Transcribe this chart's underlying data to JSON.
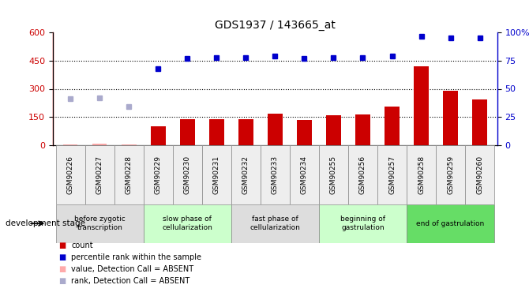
{
  "title": "GDS1937 / 143665_at",
  "samples": [
    "GSM90226",
    "GSM90227",
    "GSM90228",
    "GSM90229",
    "GSM90230",
    "GSM90231",
    "GSM90232",
    "GSM90233",
    "GSM90234",
    "GSM90255",
    "GSM90256",
    "GSM90257",
    "GSM90258",
    "GSM90259",
    "GSM90260"
  ],
  "bar_values": [
    5,
    8,
    3,
    100,
    137,
    140,
    140,
    168,
    135,
    158,
    162,
    205,
    420,
    290,
    245
  ],
  "bar_absent": [
    true,
    true,
    true,
    false,
    false,
    false,
    false,
    false,
    false,
    false,
    false,
    false,
    false,
    false,
    false
  ],
  "rank_values": [
    41,
    42,
    34,
    68,
    77,
    78,
    78,
    79,
    77,
    78,
    78,
    79,
    97,
    95,
    95
  ],
  "rank_absent": [
    true,
    true,
    true,
    false,
    false,
    false,
    false,
    false,
    false,
    false,
    false,
    false,
    false,
    false,
    false
  ],
  "ylim_left": [
    0,
    600
  ],
  "ylim_right": [
    0,
    100
  ],
  "yticks_left": [
    0,
    150,
    300,
    450,
    600
  ],
  "yticks_right": [
    0,
    25,
    50,
    75,
    100
  ],
  "bar_color_present": "#cc0000",
  "bar_color_absent": "#ffaaaa",
  "rank_color_present": "#0000cc",
  "rank_color_absent": "#aaaacc",
  "stages": [
    {
      "label": "before zygotic\ntranscription",
      "start": 0,
      "end": 3,
      "color": "#dddddd"
    },
    {
      "label": "slow phase of\ncellularization",
      "start": 3,
      "end": 6,
      "color": "#ccffcc"
    },
    {
      "label": "fast phase of\ncellularization",
      "start": 6,
      "end": 9,
      "color": "#dddddd"
    },
    {
      "label": "beginning of\ngastrulation",
      "start": 9,
      "end": 12,
      "color": "#ccffcc"
    },
    {
      "label": "end of gastrulation",
      "start": 12,
      "end": 15,
      "color": "#66dd66"
    }
  ],
  "stage_label": "development stage",
  "legend_items": [
    {
      "label": "count",
      "color": "#cc0000"
    },
    {
      "label": "percentile rank within the sample",
      "color": "#0000cc"
    },
    {
      "label": "value, Detection Call = ABSENT",
      "color": "#ffaaaa"
    },
    {
      "label": "rank, Detection Call = ABSENT",
      "color": "#aaaacc"
    }
  ]
}
